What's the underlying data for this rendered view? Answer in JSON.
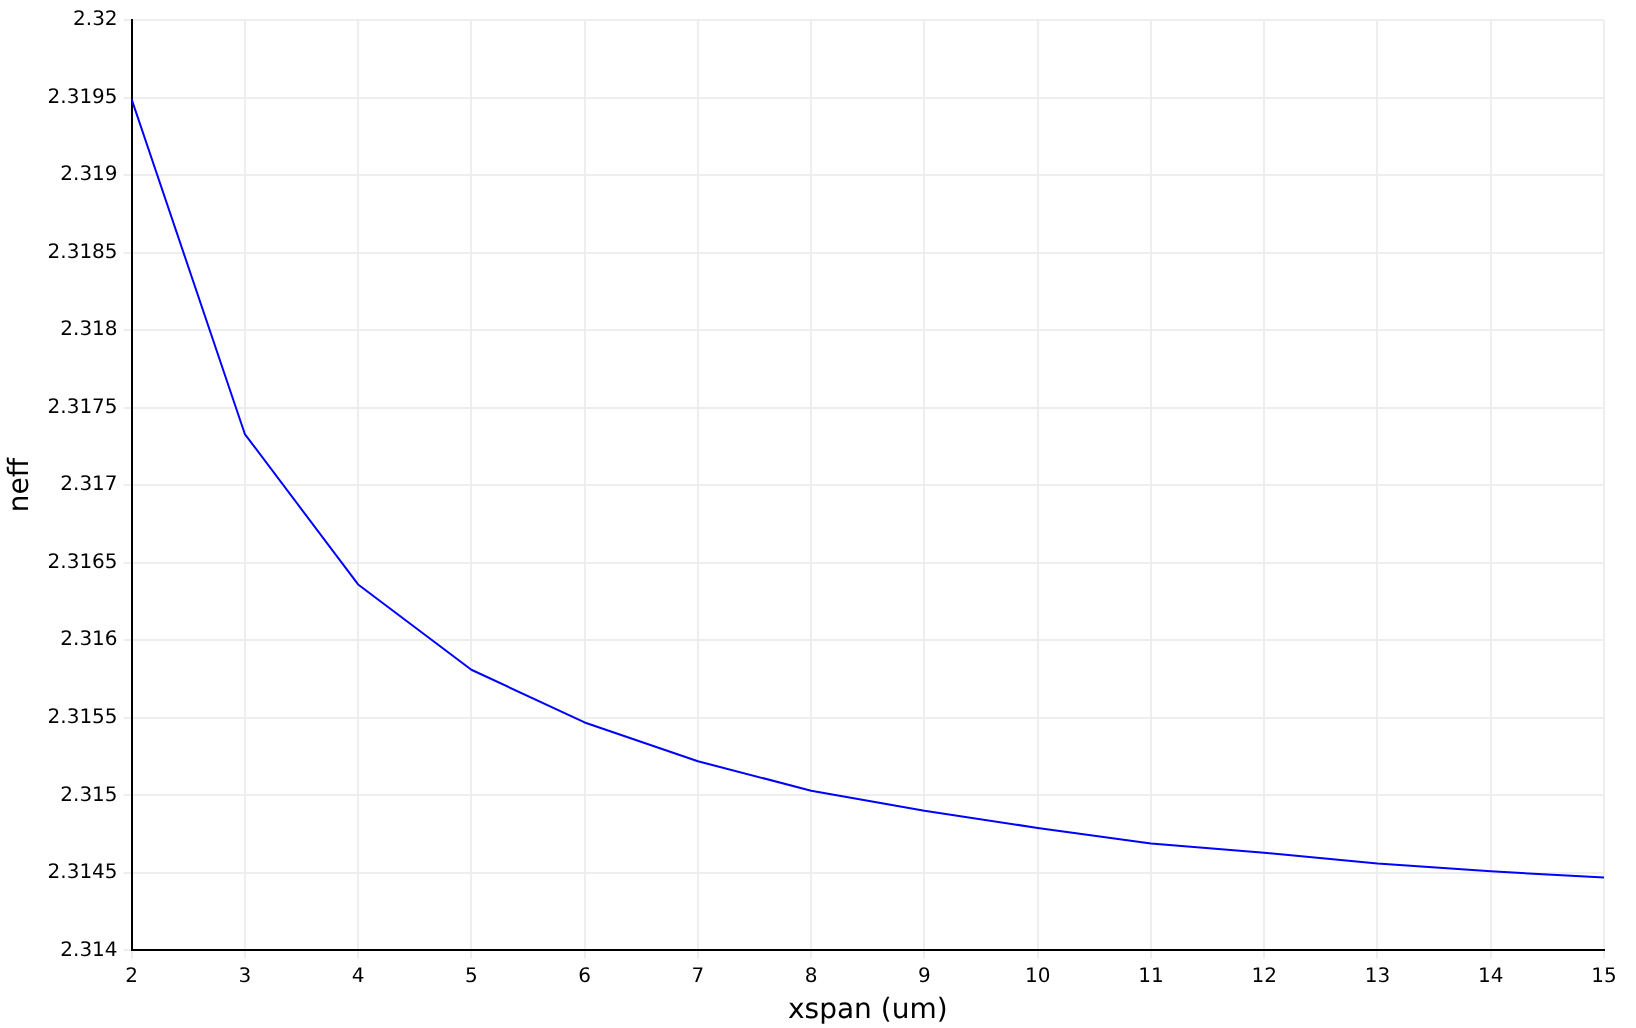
{
  "chart_data": {
    "type": "line",
    "xlabel": "xspan (um)",
    "ylabel": "neff",
    "x": [
      2,
      3,
      4,
      5,
      6,
      7,
      8,
      9,
      10,
      11,
      12,
      13,
      14,
      15
    ],
    "series": [
      {
        "color": "#0000ff",
        "values": [
          2.31949,
          2.31733,
          2.31636,
          2.31581,
          2.31547,
          2.31522,
          2.31503,
          2.3149,
          2.31479,
          2.31469,
          2.31463,
          2.31456,
          2.31451,
          2.31447
        ]
      }
    ],
    "xlim": [
      2,
      15
    ],
    "xticks": [
      2,
      3,
      4,
      5,
      6,
      7,
      8,
      9,
      10,
      11,
      12,
      13,
      14,
      15
    ],
    "ylim": [
      2.314,
      2.32
    ],
    "yticks": [
      2.314,
      2.3145,
      2.315,
      2.3155,
      2.316,
      2.3165,
      2.317,
      2.3175,
      2.318,
      2.3185,
      2.319,
      2.3195,
      2.32
    ],
    "grid": true,
    "legend": false,
    "marker": "none",
    "line_style": "solid"
  }
}
